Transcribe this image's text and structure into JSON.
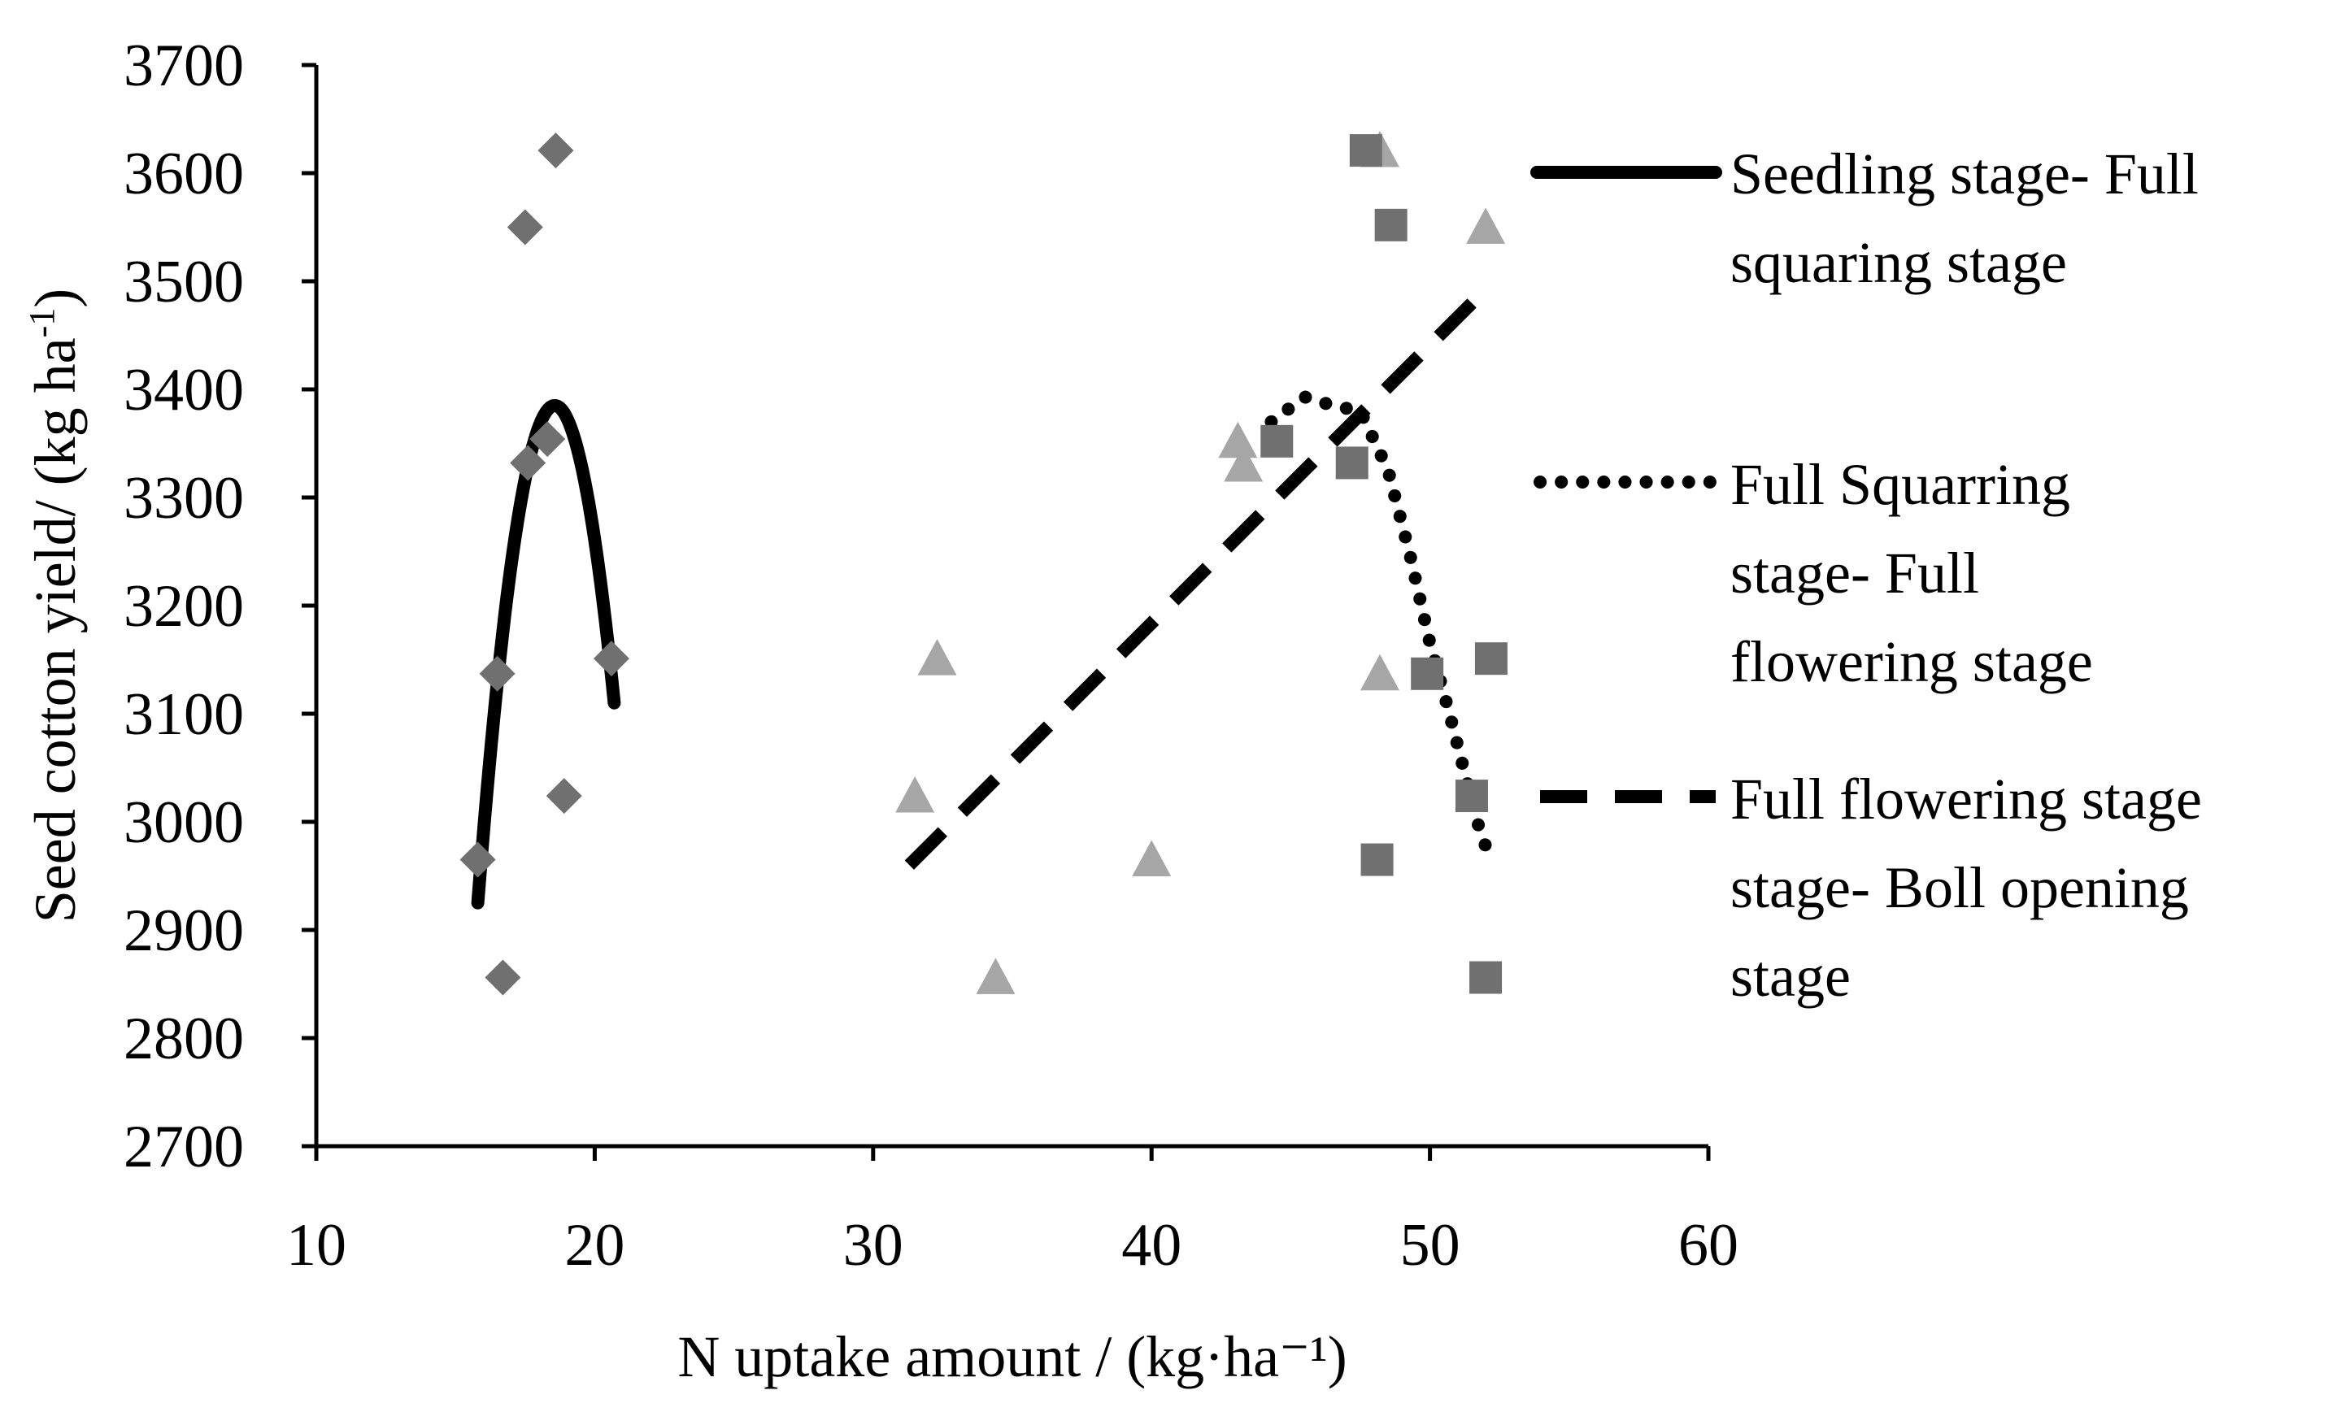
{
  "chart_data": {
    "type": "scatter",
    "xlabel": "N uptake amount / (kg·ha⁻¹)",
    "ylabel": {
      "main": "Seed cotton yield/ (kg ha",
      "sup": "-1",
      "close": ")"
    },
    "xlim": [
      10,
      60
    ],
    "ylim": [
      2700,
      3700
    ],
    "xticks": [
      "10",
      "20",
      "30",
      "40",
      "50",
      "60"
    ],
    "yticks": [
      "2700",
      "2800",
      "2900",
      "3000",
      "3100",
      "3200",
      "3300",
      "3400",
      "3500",
      "3600",
      "3700"
    ],
    "series": [
      {
        "name": "Seedling stage- Full squaring stage",
        "legend_lines": [
          "Seedling stage- Full",
          "squaring stage"
        ],
        "marker": "diamond",
        "marker_color": "#707070",
        "points": [
          [
            18.6,
            3621
          ],
          [
            17.5,
            3550
          ],
          [
            17.6,
            3332
          ],
          [
            18.3,
            3354
          ],
          [
            16.5,
            3137
          ],
          [
            20.6,
            3151
          ],
          [
            15.8,
            2965
          ],
          [
            18.9,
            3024
          ],
          [
            16.7,
            2856
          ]
        ],
        "trend": {
          "style": "solid",
          "type": "poly2",
          "x_range": [
            15.8,
            20.7
          ],
          "y_at": [
            [
              15.8,
              2925
            ],
            [
              18.6,
              3385
            ],
            [
              20.7,
              3110
            ]
          ]
        }
      },
      {
        "name": "Full Squarring stage- Full flowering stage",
        "legend_lines": [
          "Full Squarring",
          "stage- Full",
          "flowering stage"
        ],
        "marker": "square",
        "marker_color": "#707070",
        "points": [
          [
            47.7,
            3621
          ],
          [
            48.6,
            3552
          ],
          [
            44.5,
            3352
          ],
          [
            47.2,
            3332
          ],
          [
            52.2,
            3151
          ],
          [
            49.9,
            3137
          ],
          [
            51.5,
            3024
          ],
          [
            48.1,
            2965
          ],
          [
            52.0,
            2856
          ]
        ],
        "trend": {
          "style": "dotted",
          "type": "poly3",
          "points": [
            [
              44.3,
              3370
            ],
            [
              45.5,
              3393
            ],
            [
              46.5,
              3385
            ],
            [
              47.5,
              3380
            ],
            [
              48.5,
              3325
            ],
            [
              49.3,
              3245
            ],
            [
              50.0,
              3165
            ],
            [
              50.7,
              3100
            ],
            [
              51.3,
              3040
            ],
            [
              51.7,
              3000
            ],
            [
              52.1,
              2970
            ]
          ]
        }
      },
      {
        "name": "Full flowering stage stage- Boll opening stage",
        "legend_lines": [
          "Full flowering stage",
          "stage- Boll opening",
          "stage"
        ],
        "marker": "triangle",
        "marker_color": "#a6a6a6",
        "points": [
          [
            48.2,
            3621
          ],
          [
            52.0,
            3550
          ],
          [
            43.1,
            3352
          ],
          [
            43.3,
            3330
          ],
          [
            32.3,
            3151
          ],
          [
            48.2,
            3137
          ],
          [
            31.5,
            3024
          ],
          [
            40.0,
            2965
          ],
          [
            34.4,
            2856
          ]
        ],
        "trend": {
          "style": "dashed",
          "type": "linear",
          "x_range": [
            31.3,
            51.9
          ],
          "y_at": [
            [
              31.3,
              2960
            ],
            [
              51.9,
              3490
            ]
          ]
        }
      }
    ]
  }
}
